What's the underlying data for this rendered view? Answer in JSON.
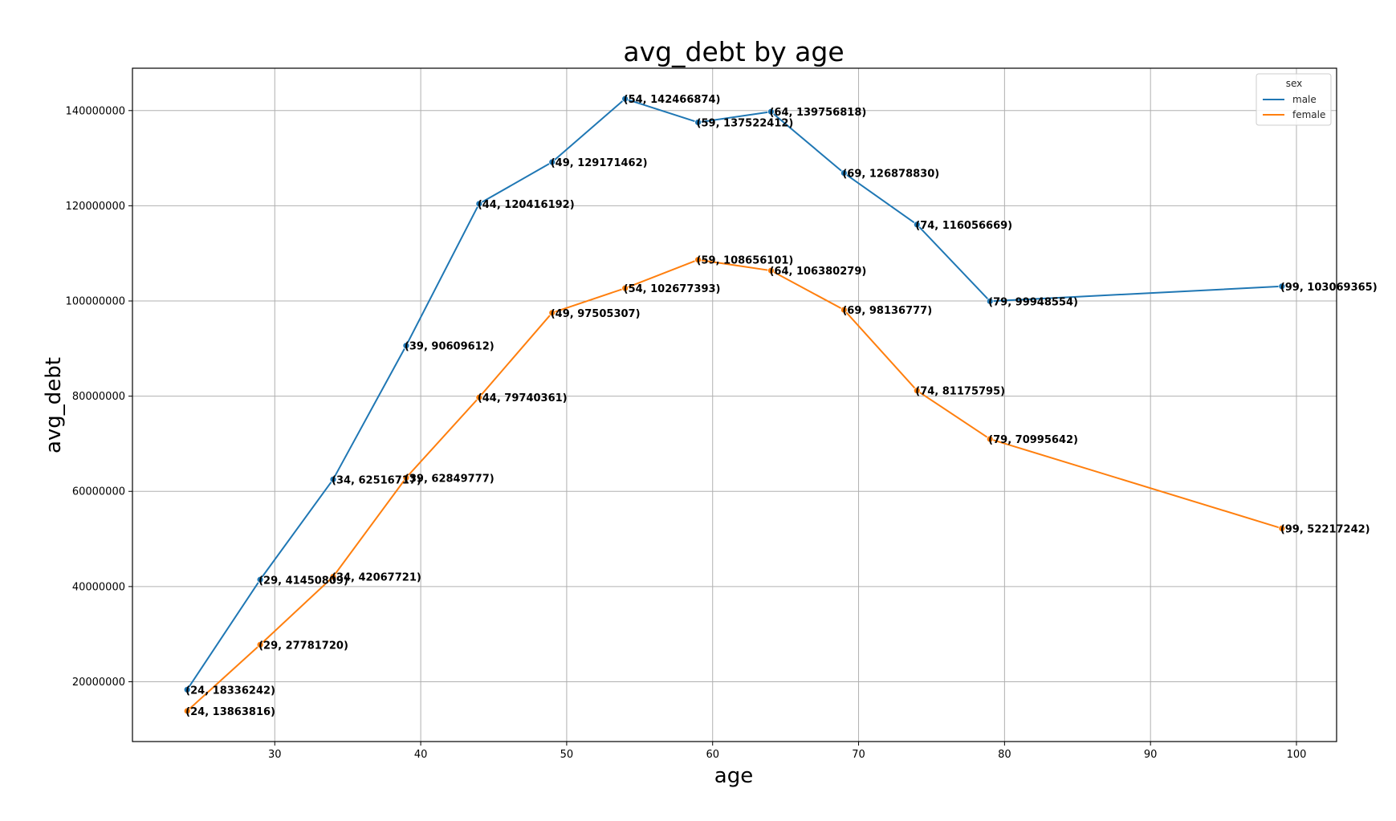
{
  "chart_data": {
    "type": "line",
    "title": "avg_debt by age",
    "xlabel": "age",
    "ylabel": "avg_debt",
    "xlim": [
      20.25,
      102.75
    ],
    "ylim": [
      7435000,
      148900000
    ],
    "xticks": [
      30,
      40,
      50,
      60,
      70,
      80,
      90,
      100
    ],
    "yticks": [
      20000000,
      40000000,
      60000000,
      80000000,
      100000000,
      120000000,
      140000000
    ],
    "grid": true,
    "legend": {
      "title": "sex",
      "position": "top-right"
    },
    "series": [
      {
        "name": "male",
        "color": "#1f77b4",
        "x": [
          24,
          29,
          34,
          39,
          44,
          49,
          54,
          59,
          64,
          69,
          74,
          79,
          99
        ],
        "y": [
          18336242,
          41450809,
          62516717,
          90609612,
          120416192,
          129171462,
          142466874,
          137522412,
          139756818,
          126878830,
          116056669,
          99948554,
          103069365
        ],
        "labels": [
          "(24, 18336242)",
          "(29, 41450809)",
          "(34, 62516717)",
          "(39, 90609612)",
          "(44, 120416192)",
          "(49, 129171462)",
          "(54, 142466874)",
          "(59, 137522412)",
          "(64, 139756818)",
          "(69, 126878830)",
          "(74, 116056669)",
          "(79, 99948554)",
          "(99, 103069365)"
        ]
      },
      {
        "name": "female",
        "color": "#ff7f0e",
        "x": [
          24,
          29,
          34,
          39,
          44,
          49,
          54,
          59,
          64,
          69,
          74,
          79,
          99
        ],
        "y": [
          13863816,
          27781720,
          42067721,
          62849777,
          79740361,
          97505307,
          102677393,
          108656101,
          106380279,
          98136777,
          81175795,
          70995642,
          52217242
        ],
        "labels": [
          "(24, 13863816)",
          "(29, 27781720)",
          "(34, 42067721)",
          "(39, 62849777)",
          "(44, 79740361)",
          "(49, 97505307)",
          "(54, 102677393)",
          "(59, 108656101)",
          "(64, 106380279)",
          "(69, 98136777)",
          "(74, 81175795)",
          "(79, 70995642)",
          "(99, 52217242)"
        ]
      }
    ]
  }
}
